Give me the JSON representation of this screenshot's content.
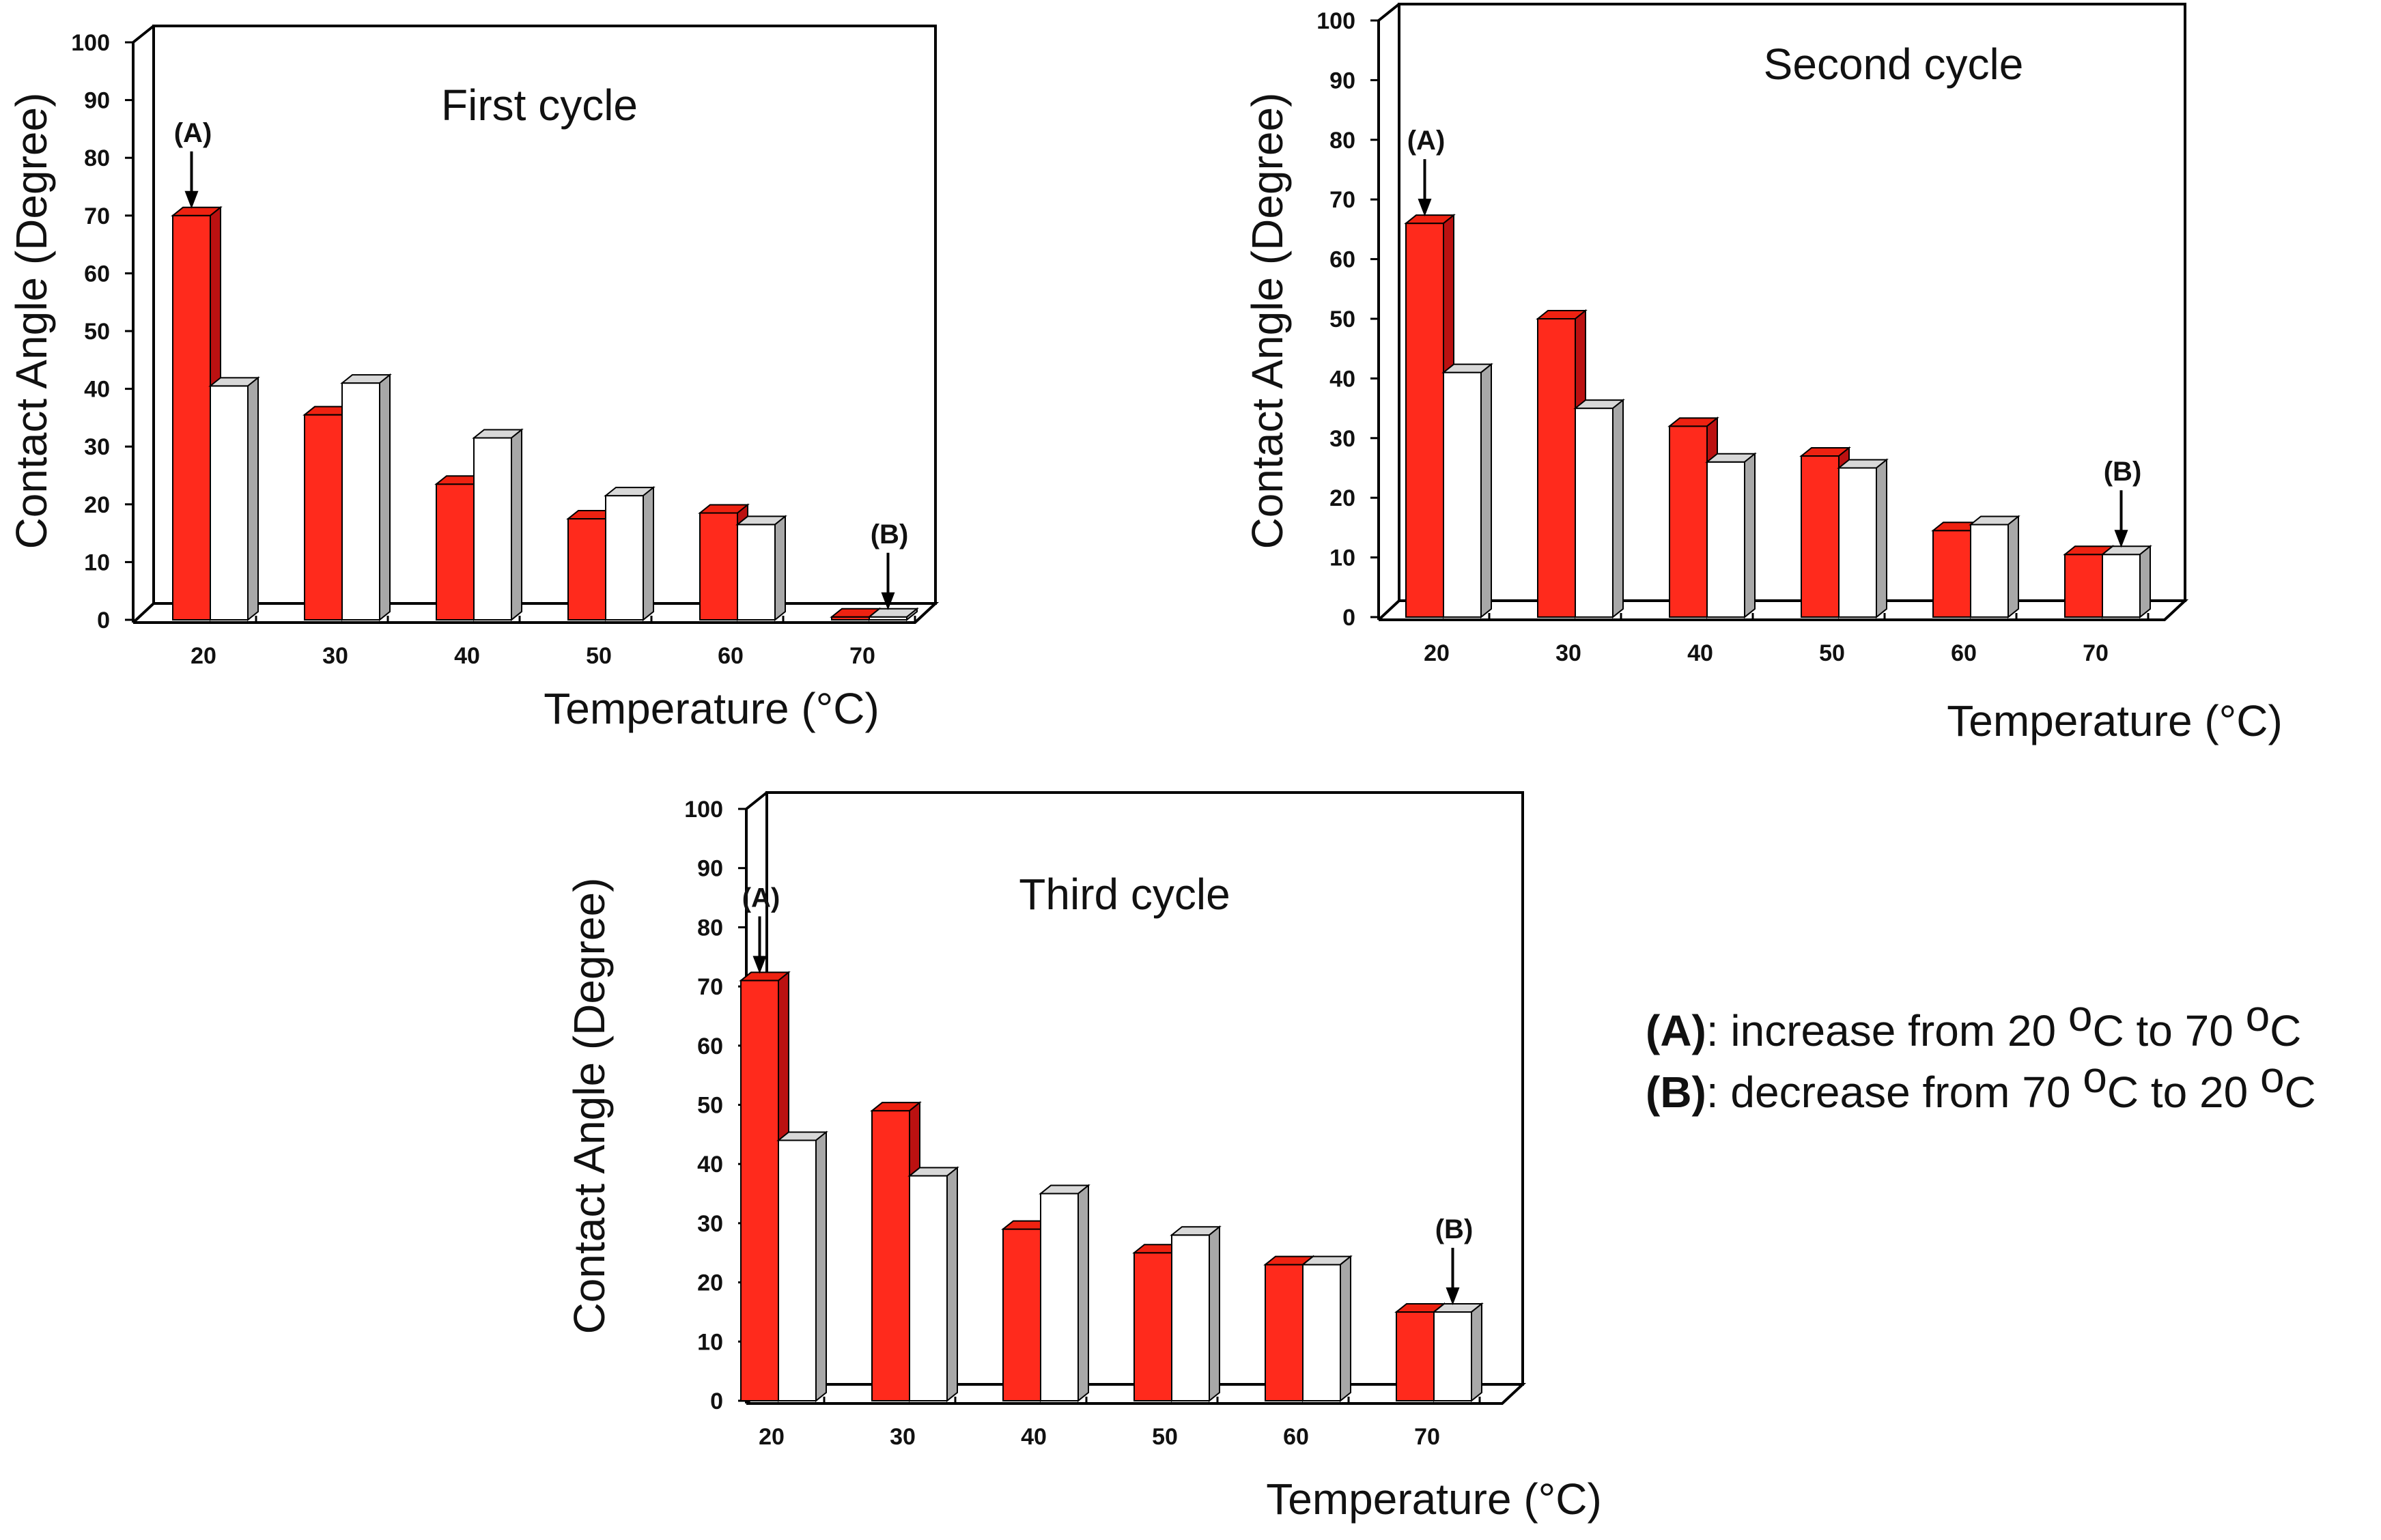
{
  "chart_data": [
    {
      "type": "bar",
      "title": "First cycle",
      "xlabel": "Temperature (°C)",
      "ylabel": "Contact Angle (Degree)",
      "categories": [
        "20",
        "30",
        "40",
        "50",
        "60",
        "70"
      ],
      "yticks": [
        "0",
        "10",
        "20",
        "30",
        "40",
        "50",
        "60",
        "70",
        "80",
        "90",
        "100"
      ],
      "ylim": [
        0,
        100
      ],
      "series": [
        {
          "name": "(A) increase",
          "values": [
            70,
            35.5,
            23.5,
            17.5,
            18.5,
            0.5
          ]
        },
        {
          "name": "(B) decrease",
          "values": [
            40.5,
            41,
            31.5,
            21.5,
            16.5,
            0.5
          ]
        }
      ],
      "annotations": [
        {
          "label": "(A)",
          "category": "20",
          "series": 0
        },
        {
          "label": "(B)",
          "category": "70",
          "series": 1
        }
      ]
    },
    {
      "type": "bar",
      "title": "Second cycle",
      "xlabel": "Temperature (°C)",
      "ylabel": "Contact Angle (Degree)",
      "categories": [
        "20",
        "30",
        "40",
        "50",
        "60",
        "70"
      ],
      "yticks": [
        "0",
        "10",
        "20",
        "30",
        "40",
        "50",
        "60",
        "70",
        "80",
        "90",
        "100"
      ],
      "ylim": [
        0,
        100
      ],
      "series": [
        {
          "name": "(A) increase",
          "values": [
            66,
            50,
            32,
            27,
            14.5,
            10.5
          ]
        },
        {
          "name": "(B) decrease",
          "values": [
            41,
            35,
            26,
            25,
            15.5,
            10.5
          ]
        }
      ],
      "annotations": [
        {
          "label": "(A)",
          "category": "20",
          "series": 0
        },
        {
          "label": "(B)",
          "category": "70",
          "series": 1
        }
      ]
    },
    {
      "type": "bar",
      "title": "Third cycle",
      "xlabel": "Temperature (°C)",
      "ylabel": "Contact Angle (Degree)",
      "categories": [
        "20",
        "30",
        "40",
        "50",
        "60",
        "70"
      ],
      "yticks": [
        "0",
        "10",
        "20",
        "30",
        "40",
        "50",
        "60",
        "70",
        "80",
        "90",
        "100"
      ],
      "ylim": [
        0,
        100
      ],
      "series": [
        {
          "name": "(A) increase",
          "values": [
            71,
            49,
            29,
            25,
            23,
            15
          ]
        },
        {
          "name": "(B) decrease",
          "values": [
            44,
            38,
            35,
            28,
            23,
            15
          ]
        }
      ],
      "annotations": [
        {
          "label": "(A)",
          "category": "20",
          "series": 0
        },
        {
          "label": "(B)",
          "category": "70",
          "series": 1
        }
      ]
    }
  ],
  "legend": {
    "items": [
      {
        "key": "(A)",
        "before": ": increase from 20 ",
        "mid": "C to 70 ",
        "deg": "o",
        "unit": "C"
      },
      {
        "key": "(B)",
        "before": ": decrease from 70 ",
        "mid": "C to 20 ",
        "deg": "o",
        "unit": "C"
      }
    ]
  },
  "colors": {
    "series_a_front": "#ff2a1c",
    "series_a_top": "#ee2211",
    "series_a_side": "#bb1111",
    "series_b_front": "#ffffff",
    "series_b_top": "#d8d8d8",
    "series_b_side": "#a8a8a8",
    "frame": "#000000"
  }
}
